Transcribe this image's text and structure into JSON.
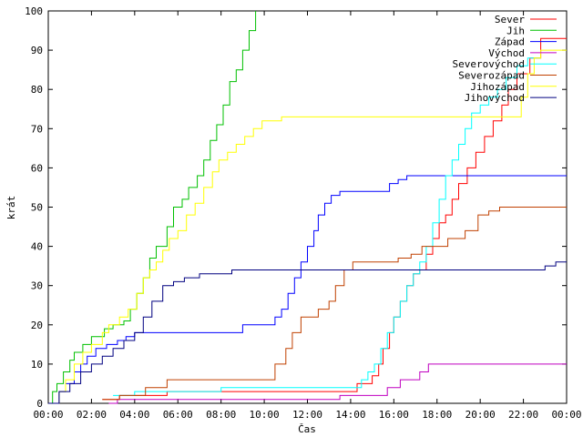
{
  "chart_data": {
    "type": "line",
    "xlabel": "Čas",
    "ylabel": "krát",
    "xlim": [
      0,
      24
    ],
    "ylim": [
      0,
      100
    ],
    "x_ticks": [
      {
        "v": 0,
        "label": "00:00"
      },
      {
        "v": 2,
        "label": "02:00"
      },
      {
        "v": 4,
        "label": "04:00"
      },
      {
        "v": 6,
        "label": "06:00"
      },
      {
        "v": 8,
        "label": "08:00"
      },
      {
        "v": 10,
        "label": "10:00"
      },
      {
        "v": 12,
        "label": "12:00"
      },
      {
        "v": 14,
        "label": "14:00"
      },
      {
        "v": 16,
        "label": "16:00"
      },
      {
        "v": 18,
        "label": "18:00"
      },
      {
        "v": 20,
        "label": "20:00"
      },
      {
        "v": 22,
        "label": "22:00"
      },
      {
        "v": 24,
        "label": "00:00"
      }
    ],
    "y_ticks": [
      0,
      10,
      20,
      30,
      40,
      50,
      60,
      70,
      80,
      90,
      100
    ],
    "grid": false,
    "legend_position": "top-right",
    "series": [
      {
        "name": "Sever",
        "color": "#ff0000",
        "points": [
          [
            2.5,
            1
          ],
          [
            3.3,
            2
          ],
          [
            5.5,
            3
          ],
          [
            13.5,
            3
          ],
          [
            14.3,
            5
          ],
          [
            15,
            7
          ],
          [
            15.3,
            10
          ],
          [
            15.5,
            14
          ],
          [
            15.8,
            18
          ],
          [
            16,
            22
          ],
          [
            16.3,
            26
          ],
          [
            16.6,
            30
          ],
          [
            16.9,
            33
          ],
          [
            17.2,
            34
          ],
          [
            17.5,
            38
          ],
          [
            17.8,
            42
          ],
          [
            18.1,
            46
          ],
          [
            18.4,
            48
          ],
          [
            18.7,
            52
          ],
          [
            19,
            56
          ],
          [
            19.4,
            60
          ],
          [
            19.8,
            64
          ],
          [
            20.2,
            68
          ],
          [
            20.6,
            72
          ],
          [
            21,
            76
          ],
          [
            21.3,
            80
          ],
          [
            21.7,
            84
          ],
          [
            22.3,
            88
          ],
          [
            22.8,
            93
          ],
          [
            24,
            93
          ]
        ]
      },
      {
        "name": "Jih",
        "color": "#00c000",
        "points": [
          [
            0,
            0
          ],
          [
            0.2,
            3
          ],
          [
            0.4,
            5
          ],
          [
            0.7,
            8
          ],
          [
            1,
            11
          ],
          [
            1.2,
            13
          ],
          [
            1.6,
            15
          ],
          [
            2,
            17
          ],
          [
            2.6,
            19
          ],
          [
            3,
            20
          ],
          [
            3.5,
            21
          ],
          [
            3.8,
            24
          ],
          [
            4.1,
            28
          ],
          [
            4.4,
            32
          ],
          [
            4.7,
            37
          ],
          [
            5,
            40
          ],
          [
            5.5,
            45
          ],
          [
            5.8,
            50
          ],
          [
            6.2,
            52
          ],
          [
            6.5,
            55
          ],
          [
            6.9,
            58
          ],
          [
            7.2,
            62
          ],
          [
            7.5,
            67
          ],
          [
            7.8,
            71
          ],
          [
            8.1,
            76
          ],
          [
            8.4,
            82
          ],
          [
            8.7,
            85
          ],
          [
            9,
            90
          ],
          [
            9.3,
            95
          ],
          [
            9.6,
            100
          ]
        ]
      },
      {
        "name": "Západ",
        "color": "#0000ff",
        "points": [
          [
            0,
            0
          ],
          [
            0.5,
            3
          ],
          [
            0.8,
            5
          ],
          [
            1.2,
            8
          ],
          [
            1.5,
            10
          ],
          [
            1.8,
            12
          ],
          [
            2.2,
            14
          ],
          [
            2.7,
            15
          ],
          [
            3.2,
            16
          ],
          [
            3.6,
            17
          ],
          [
            4,
            18
          ],
          [
            7,
            18
          ],
          [
            9,
            20
          ],
          [
            10.2,
            20
          ],
          [
            10.5,
            22
          ],
          [
            10.8,
            24
          ],
          [
            11.1,
            28
          ],
          [
            11.4,
            32
          ],
          [
            11.7,
            36
          ],
          [
            12,
            40
          ],
          [
            12.3,
            44
          ],
          [
            12.5,
            48
          ],
          [
            12.8,
            51
          ],
          [
            13.1,
            53
          ],
          [
            13.5,
            54
          ],
          [
            15.5,
            54
          ],
          [
            15.8,
            56
          ],
          [
            16.2,
            57
          ],
          [
            16.6,
            58
          ],
          [
            24,
            58
          ]
        ]
      },
      {
        "name": "Východ",
        "color": "#c000c0",
        "points": [
          [
            2.8,
            0
          ],
          [
            3.2,
            1
          ],
          [
            13.5,
            2
          ],
          [
            14.5,
            2
          ],
          [
            15.7,
            4
          ],
          [
            16.3,
            6
          ],
          [
            17.2,
            8
          ],
          [
            17.6,
            10
          ],
          [
            24,
            10
          ]
        ]
      },
      {
        "name": "Severovýchod",
        "color": "#00ffff",
        "points": [
          [
            3,
            2
          ],
          [
            4,
            3
          ],
          [
            8,
            4
          ],
          [
            13.5,
            4
          ],
          [
            14.5,
            6
          ],
          [
            14.8,
            8
          ],
          [
            15.1,
            10
          ],
          [
            15.4,
            14
          ],
          [
            15.7,
            18
          ],
          [
            16,
            22
          ],
          [
            16.3,
            26
          ],
          [
            16.6,
            30
          ],
          [
            16.9,
            33
          ],
          [
            17.2,
            36
          ],
          [
            17.5,
            40
          ],
          [
            17.8,
            46
          ],
          [
            18.1,
            52
          ],
          [
            18.4,
            58
          ],
          [
            18.7,
            62
          ],
          [
            19,
            66
          ],
          [
            19.3,
            70
          ],
          [
            19.6,
            74
          ],
          [
            20,
            76
          ],
          [
            20.4,
            78
          ],
          [
            20.8,
            80
          ],
          [
            21.2,
            83
          ],
          [
            21.7,
            86
          ],
          [
            22.2,
            88
          ],
          [
            22.8,
            88
          ]
        ]
      },
      {
        "name": "Severozápad",
        "color": "#c04000",
        "points": [
          [
            2.5,
            1
          ],
          [
            3.3,
            2
          ],
          [
            4.5,
            4
          ],
          [
            5.5,
            6
          ],
          [
            10,
            6
          ],
          [
            10.5,
            10
          ],
          [
            11,
            14
          ],
          [
            11.3,
            18
          ],
          [
            11.7,
            22
          ],
          [
            12.5,
            24
          ],
          [
            13,
            26
          ],
          [
            13.3,
            30
          ],
          [
            13.7,
            34
          ],
          [
            14.1,
            36
          ],
          [
            14.5,
            36
          ],
          [
            15.5,
            36
          ],
          [
            16.2,
            37
          ],
          [
            16.8,
            38
          ],
          [
            17.3,
            40
          ],
          [
            17.8,
            40
          ],
          [
            18.5,
            42
          ],
          [
            19.3,
            44
          ],
          [
            19.9,
            48
          ],
          [
            20.4,
            49
          ],
          [
            20.9,
            50
          ],
          [
            24,
            50
          ]
        ]
      },
      {
        "name": "Jihozápad",
        "color": "#ffff00",
        "points": [
          [
            0,
            0
          ],
          [
            0.5,
            3
          ],
          [
            0.8,
            6
          ],
          [
            1.2,
            10
          ],
          [
            1.6,
            13
          ],
          [
            2,
            15
          ],
          [
            2.5,
            18
          ],
          [
            2.8,
            20
          ],
          [
            3.3,
            22
          ],
          [
            3.7,
            24
          ],
          [
            4.1,
            28
          ],
          [
            4.4,
            32
          ],
          [
            4.7,
            34
          ],
          [
            5,
            36
          ],
          [
            5.3,
            39
          ],
          [
            5.6,
            42
          ],
          [
            6,
            44
          ],
          [
            6.4,
            48
          ],
          [
            6.8,
            51
          ],
          [
            7.2,
            55
          ],
          [
            7.6,
            59
          ],
          [
            7.9,
            62
          ],
          [
            8.3,
            64
          ],
          [
            8.7,
            66
          ],
          [
            9.1,
            68
          ],
          [
            9.5,
            70
          ],
          [
            9.9,
            72
          ],
          [
            10.3,
            72
          ],
          [
            10.8,
            73
          ],
          [
            13.5,
            73
          ],
          [
            21.5,
            73
          ],
          [
            21.9,
            78
          ],
          [
            22.2,
            84
          ],
          [
            22.5,
            88
          ],
          [
            22.8,
            90
          ],
          [
            24,
            90
          ]
        ]
      },
      {
        "name": "Jihovýchod",
        "color": "#000080",
        "points": [
          [
            0,
            0
          ],
          [
            0.5,
            3
          ],
          [
            1,
            5
          ],
          [
            1.5,
            8
          ],
          [
            2,
            10
          ],
          [
            2.5,
            12
          ],
          [
            3,
            14
          ],
          [
            3.5,
            16
          ],
          [
            4,
            18
          ],
          [
            4.4,
            22
          ],
          [
            4.8,
            26
          ],
          [
            5.3,
            30
          ],
          [
            5.8,
            31
          ],
          [
            6.3,
            32
          ],
          [
            7,
            33
          ],
          [
            8.5,
            34
          ],
          [
            13.5,
            34
          ],
          [
            17,
            34
          ],
          [
            23,
            35
          ],
          [
            23.5,
            36
          ],
          [
            24,
            36
          ]
        ]
      }
    ]
  }
}
